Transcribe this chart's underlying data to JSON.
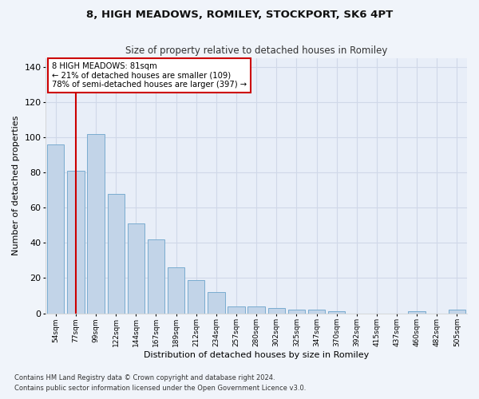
{
  "title1": "8, HIGH MEADOWS, ROMILEY, STOCKPORT, SK6 4PT",
  "title2": "Size of property relative to detached houses in Romiley",
  "xlabel": "Distribution of detached houses by size in Romiley",
  "ylabel": "Number of detached properties",
  "categories": [
    "54sqm",
    "77sqm",
    "99sqm",
    "122sqm",
    "144sqm",
    "167sqm",
    "189sqm",
    "212sqm",
    "234sqm",
    "257sqm",
    "280sqm",
    "302sqm",
    "325sqm",
    "347sqm",
    "370sqm",
    "392sqm",
    "415sqm",
    "437sqm",
    "460sqm",
    "482sqm",
    "505sqm"
  ],
  "values": [
    96,
    81,
    102,
    68,
    51,
    42,
    26,
    19,
    12,
    4,
    4,
    3,
    2,
    2,
    1,
    0,
    0,
    0,
    1,
    0,
    2
  ],
  "bar_color": "#c2d4e8",
  "bar_edge_color": "#7aacd0",
  "highlight_bar_index": 1,
  "highlight_color": "#cc0000",
  "annotation_line1": "8 HIGH MEADOWS: 81sqm",
  "annotation_line2": "← 21% of detached houses are smaller (109)",
  "annotation_line3": "78% of semi-detached houses are larger (397) →",
  "annotation_box_color": "#ffffff",
  "annotation_box_edge": "#cc0000",
  "ylim": [
    0,
    145
  ],
  "yticks": [
    0,
    20,
    40,
    60,
    80,
    100,
    120,
    140
  ],
  "footnote1": "Contains HM Land Registry data © Crown copyright and database right 2024.",
  "footnote2": "Contains public sector information licensed under the Open Government Licence v3.0.",
  "background_color": "#f0f4fa",
  "plot_bg_color": "#e8eef8",
  "grid_color": "#d0d8e8"
}
